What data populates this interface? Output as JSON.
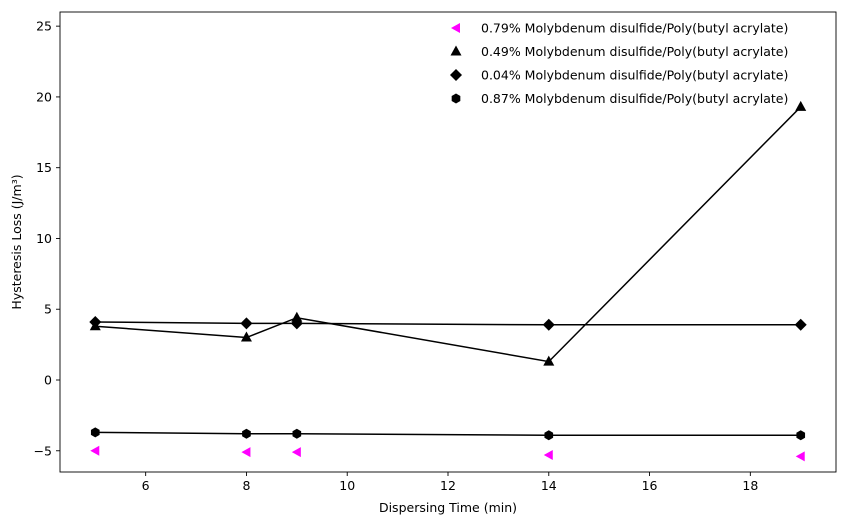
{
  "chart_data": {
    "type": "scatter",
    "xlabel": "Dispersing Time (min)",
    "ylabel": "Hysteresis Loss (J/m³)",
    "xlim": [
      4.3,
      19.7
    ],
    "ylim": [
      -6.5,
      26
    ],
    "xticks": [
      6,
      8,
      10,
      12,
      14,
      16,
      18
    ],
    "yticks": [
      -5,
      0,
      5,
      10,
      15,
      20,
      25
    ],
    "grid": false,
    "legend_position": "top-right",
    "series": [
      {
        "name": "0.79% Molybdenum disulfide/Poly(butyl acrylate)",
        "marker": "triangle-left",
        "color": "#ff00ff",
        "line": false,
        "x": [
          5,
          8,
          9,
          14,
          19
        ],
        "y": [
          -5.0,
          -5.1,
          -5.1,
          -5.3,
          -5.4
        ]
      },
      {
        "name": "0.49% Molybdenum disulfide/Poly(butyl acrylate)",
        "marker": "triangle-up",
        "color": "#000000",
        "line": true,
        "x": [
          5,
          8,
          9,
          14,
          19
        ],
        "y": [
          3.8,
          3.0,
          4.4,
          1.3,
          19.3
        ]
      },
      {
        "name": "0.04% Molybdenum disulfide/Poly(butyl acrylate)",
        "marker": "diamond",
        "color": "#000000",
        "line": true,
        "x": [
          5,
          8,
          9,
          14,
          19
        ],
        "y": [
          4.1,
          4.0,
          4.0,
          3.9,
          3.9
        ]
      },
      {
        "name": "0.87% Molybdenum disulfide/Poly(butyl acrylate)",
        "marker": "hexagon",
        "color": "#000000",
        "line": true,
        "x": [
          5,
          8,
          9,
          14,
          19
        ],
        "y": [
          -3.7,
          -3.8,
          -3.8,
          -3.9,
          -3.9
        ]
      }
    ]
  }
}
